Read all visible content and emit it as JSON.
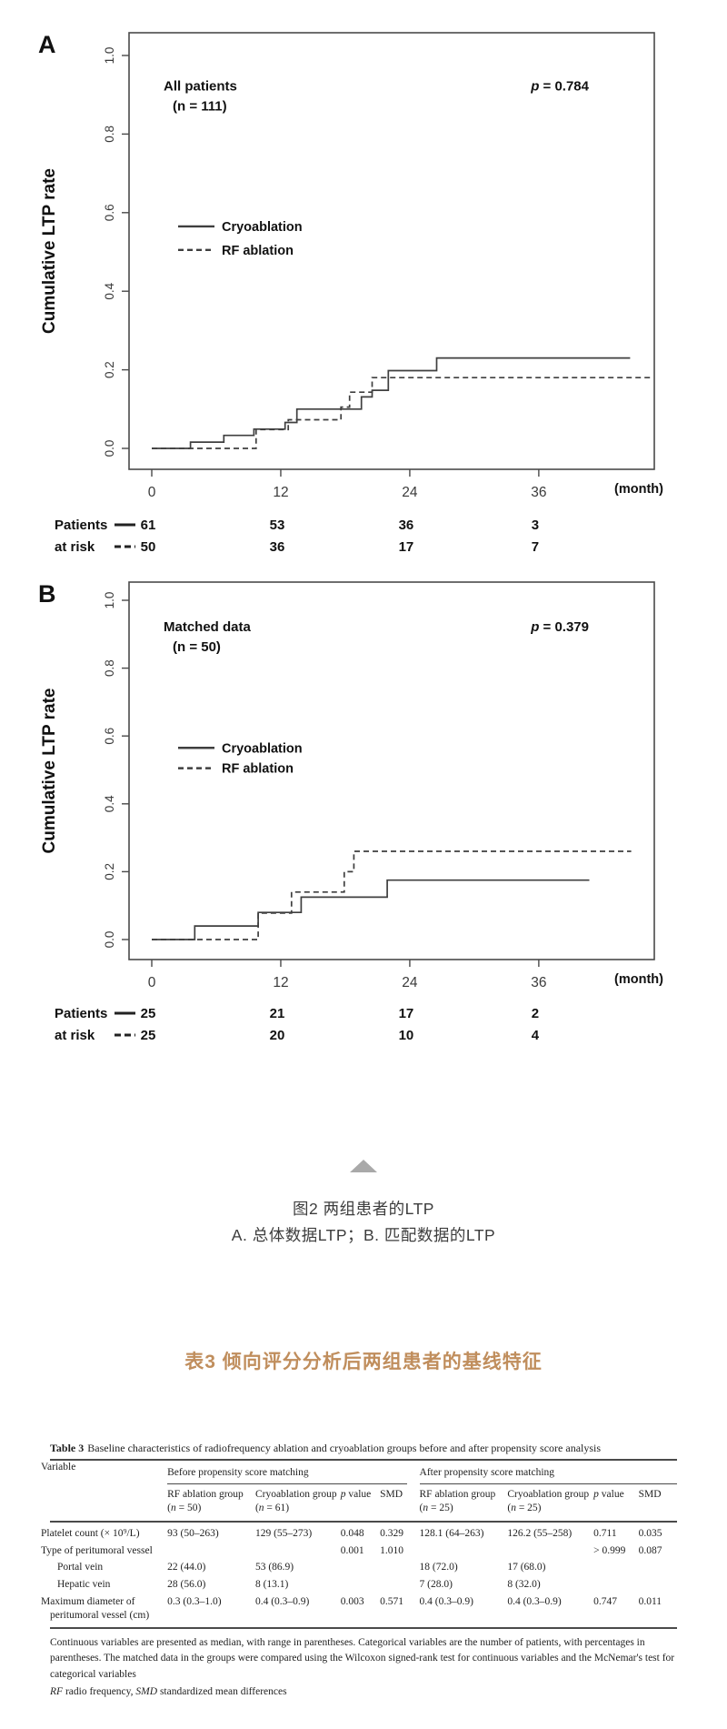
{
  "accent_color": "#c08e5d",
  "figure": {
    "caption_line1": "图2 两组患者的LTP",
    "caption_line2": "A. 总体数据LTP；B. 匹配数据的LTP",
    "collapse_arrow": "up-triangle"
  },
  "table_heading": "表3 倾向评分分析后两组患者的基线特征",
  "chart_data": {
    "type": "line",
    "subtype": "kaplan-meier-step",
    "ylabel": "Cumulative LTP rate",
    "yticks": [
      "0.0",
      "0.2",
      "0.4",
      "0.6",
      "0.8",
      "1.0"
    ],
    "ylim": [
      0,
      1.0
    ],
    "xticks": [
      0,
      12,
      24,
      36
    ],
    "xunit": "(month)",
    "grid": false,
    "legend_position": "left-middle",
    "panels": [
      {
        "label": "A",
        "annotation_line1": "All patients",
        "annotation_line2": "(n = 111)",
        "p_label": "p = 0.784",
        "series": [
          {
            "name": "Cryoablation",
            "style": "solid",
            "points": [
              [
                0,
                0
              ],
              [
                3.6,
                0.016
              ],
              [
                6.7,
                0.033
              ],
              [
                9.5,
                0.049
              ],
              [
                12.4,
                0.066
              ],
              [
                13.5,
                0.1
              ],
              [
                19.5,
                0.131
              ],
              [
                20.5,
                0.148
              ],
              [
                22.0,
                0.198
              ],
              [
                26.5,
                0.23
              ]
            ],
            "end_month": 44.5
          },
          {
            "name": "RF ablation",
            "style": "dashed",
            "points": [
              [
                0,
                0
              ],
              [
                9.7,
                0.048
              ],
              [
                12.7,
                0.073
              ],
              [
                17.6,
                0.105
              ],
              [
                18.4,
                0.143
              ],
              [
                20.5,
                0.18
              ]
            ],
            "end_month": 46.5
          }
        ],
        "risk_table": {
          "label_line1": "Patients",
          "label_line2": "at risk",
          "rows": [
            {
              "style": "solid",
              "values": [
                "61",
                "53",
                "36",
                "3"
              ]
            },
            {
              "style": "dashed",
              "values": [
                "50",
                "36",
                "17",
                "7"
              ]
            }
          ]
        }
      },
      {
        "label": "B",
        "annotation_line1": "Matched data",
        "annotation_line2": "(n = 50)",
        "p_label": "p = 0.379",
        "series": [
          {
            "name": "Cryoablation",
            "style": "solid",
            "points": [
              [
                0,
                0
              ],
              [
                4.0,
                0.04
              ],
              [
                9.9,
                0.08
              ],
              [
                13.9,
                0.125
              ],
              [
                21.9,
                0.175
              ]
            ],
            "end_month": 40.7
          },
          {
            "name": "RF ablation",
            "style": "dashed",
            "points": [
              [
                0,
                0
              ],
              [
                9.9,
                0.078
              ],
              [
                13.0,
                0.14
              ],
              [
                17.9,
                0.2
              ],
              [
                18.8,
                0.26
              ]
            ],
            "end_month": 44.6
          }
        ],
        "risk_table": {
          "label_line1": "Patients",
          "label_line2": "at risk",
          "rows": [
            {
              "style": "solid",
              "values": [
                "25",
                "21",
                "17",
                "2"
              ]
            },
            {
              "style": "dashed",
              "values": [
                "25",
                "20",
                "10",
                "4"
              ]
            }
          ]
        }
      }
    ]
  },
  "table3": {
    "title_label": "Table 3",
    "title_text": "Baseline characteristics of radiofrequency ablation and cryoablation groups before and after propensity score analysis",
    "variable_header": "Variable",
    "group_headers": [
      "Before propensity score matching",
      "After propensity score matching"
    ],
    "columns": [
      "RF ablation group (n = 50)",
      "Cryoablation group (n = 61)",
      "p value",
      "SMD",
      "RF ablation group (n = 25)",
      "Cryoablation group (n = 25)",
      "p value",
      "SMD"
    ],
    "rows": [
      {
        "variable": "Platelet count (× 10⁹/L)",
        "indent": false,
        "cells": [
          "93 (50–263)",
          "129 (55–273)",
          "0.048",
          "0.329",
          "128.1 (64–263)",
          "126.2 (55–258)",
          "0.711",
          "0.035"
        ]
      },
      {
        "variable": "Type of peritumoral vessel",
        "indent": false,
        "cells": [
          "",
          "",
          "0.001",
          "1.010",
          "",
          "",
          "> 0.999",
          "0.087"
        ]
      },
      {
        "variable": "Portal vein",
        "indent": true,
        "cells": [
          "22 (44.0)",
          "53 (86.9)",
          "",
          "",
          "18 (72.0)",
          "17 (68.0)",
          "",
          ""
        ]
      },
      {
        "variable": "Hepatic vein",
        "indent": true,
        "cells": [
          "28 (56.0)",
          "8 (13.1)",
          "",
          "",
          "7 (28.0)",
          "8 (32.0)",
          "",
          ""
        ]
      },
      {
        "variable": "Maximum diameter of peritumoral vessel (cm)",
        "indent": false,
        "cells": [
          "0.3 (0.3–1.0)",
          "0.4 (0.3–0.9)",
          "0.003",
          "0.571",
          "0.4 (0.3–0.9)",
          "0.4 (0.3–0.9)",
          "0.747",
          "0.011"
        ]
      }
    ],
    "footnotes": [
      "Continuous variables are presented as median, with range in parentheses. Categorical variables are the number of patients, with percentages in parentheses. The matched data in the groups were compared using the Wilcoxon signed-rank test for continuous variables and the McNemar's test for categorical variables",
      "RF radio frequency, SMD standardized mean differences"
    ]
  }
}
